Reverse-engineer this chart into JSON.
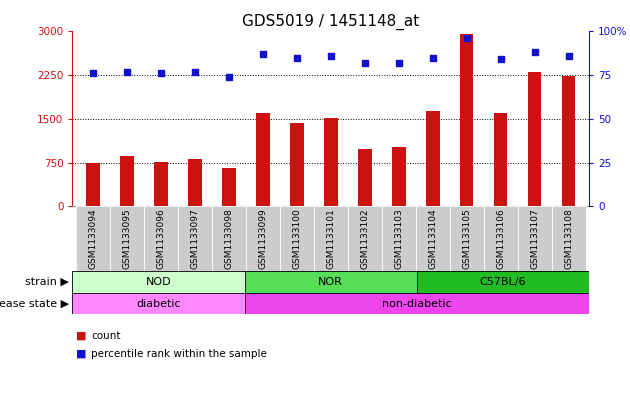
{
  "title": "GDS5019 / 1451148_at",
  "samples": [
    "GSM1133094",
    "GSM1133095",
    "GSM1133096",
    "GSM1133097",
    "GSM1133098",
    "GSM1133099",
    "GSM1133100",
    "GSM1133101",
    "GSM1133102",
    "GSM1133103",
    "GSM1133104",
    "GSM1133105",
    "GSM1133106",
    "GSM1133107",
    "GSM1133108"
  ],
  "counts": [
    750,
    860,
    760,
    810,
    660,
    1600,
    1430,
    1510,
    975,
    1020,
    1630,
    2950,
    1600,
    2310,
    2230
  ],
  "percentiles": [
    76,
    77,
    76,
    77,
    74,
    87,
    85,
    86,
    82,
    82,
    85,
    96,
    84,
    88,
    86
  ],
  "bar_color": "#cc1111",
  "dot_color": "#1111cc",
  "ylim_left": [
    0,
    3000
  ],
  "ylim_right": [
    0,
    100
  ],
  "yticks_left": [
    0,
    750,
    1500,
    2250,
    3000
  ],
  "yticks_right": [
    0,
    25,
    50,
    75,
    100
  ],
  "ytick_right_labels": [
    "0",
    "25",
    "50",
    "75",
    "100%"
  ],
  "grid_values": [
    750,
    1500,
    2250
  ],
  "strain_groups": [
    {
      "label": "NOD",
      "start": 0,
      "end": 5,
      "color": "#ccffcc"
    },
    {
      "label": "NOR",
      "start": 5,
      "end": 10,
      "color": "#55dd55"
    },
    {
      "label": "C57BL/6",
      "start": 10,
      "end": 15,
      "color": "#22bb22"
    }
  ],
  "disease_groups": [
    {
      "label": "diabetic",
      "start": 0,
      "end": 5,
      "color": "#ff88ff"
    },
    {
      "label": "non-diabetic",
      "start": 5,
      "end": 15,
      "color": "#ee44ee"
    }
  ],
  "strain_label": "strain",
  "disease_label": "disease state",
  "legend_count_label": "count",
  "legend_pct_label": "percentile rank within the sample",
  "tick_bg_color": "#cccccc",
  "title_fontsize": 11,
  "tick_fontsize": 6.5,
  "row_label_fontsize": 8,
  "axis_tick_fontsize": 7.5
}
